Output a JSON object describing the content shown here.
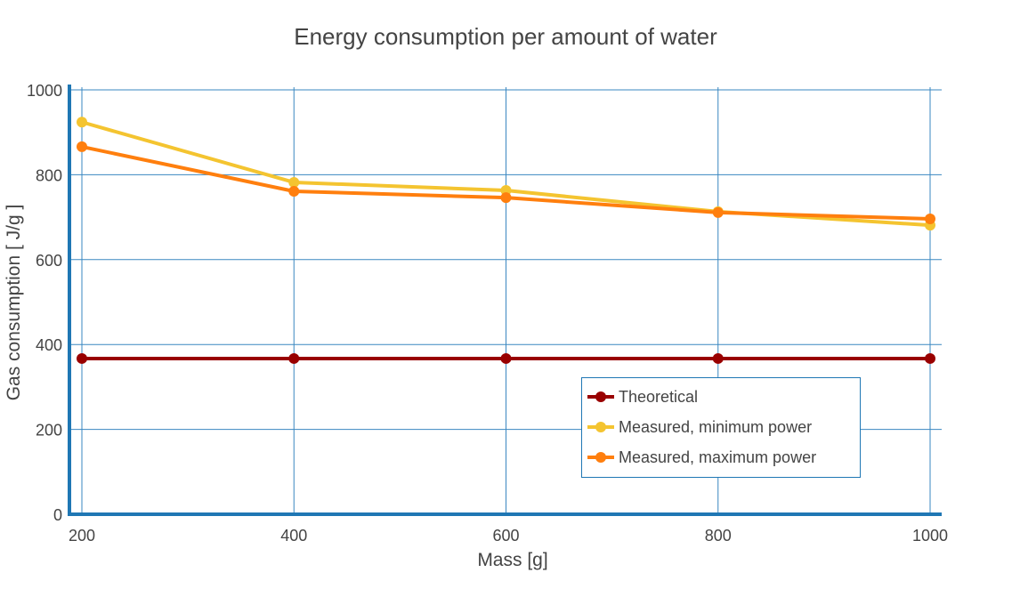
{
  "chart_data": {
    "type": "line",
    "title": "Energy consumption per amount of water",
    "xlabel": "Mass [g]",
    "ylabel": "Gas consumption [ J/g ]",
    "xlim": [
      200,
      1000
    ],
    "ylim": [
      0,
      1000
    ],
    "x_ticks": [
      200,
      400,
      600,
      800,
      1000
    ],
    "y_ticks": [
      0,
      200,
      400,
      600,
      800,
      1000
    ],
    "grid": true,
    "legend_position": "bottom-right",
    "x": [
      200,
      400,
      600,
      800,
      1000
    ],
    "series": [
      {
        "name": "Theoretical",
        "color": "#990000",
        "values": [
          367,
          367,
          367,
          367,
          367
        ]
      },
      {
        "name": "Measured, minimum power",
        "color": "#F4C430",
        "values": [
          924,
          782,
          763,
          713,
          681
        ]
      },
      {
        "name": "Measured, maximum power",
        "color": "#FF7F0E",
        "values": [
          866,
          761,
          746,
          711,
          696
        ]
      }
    ],
    "axis_color": "#1F77B4",
    "grid_color": "#3A87C0"
  }
}
